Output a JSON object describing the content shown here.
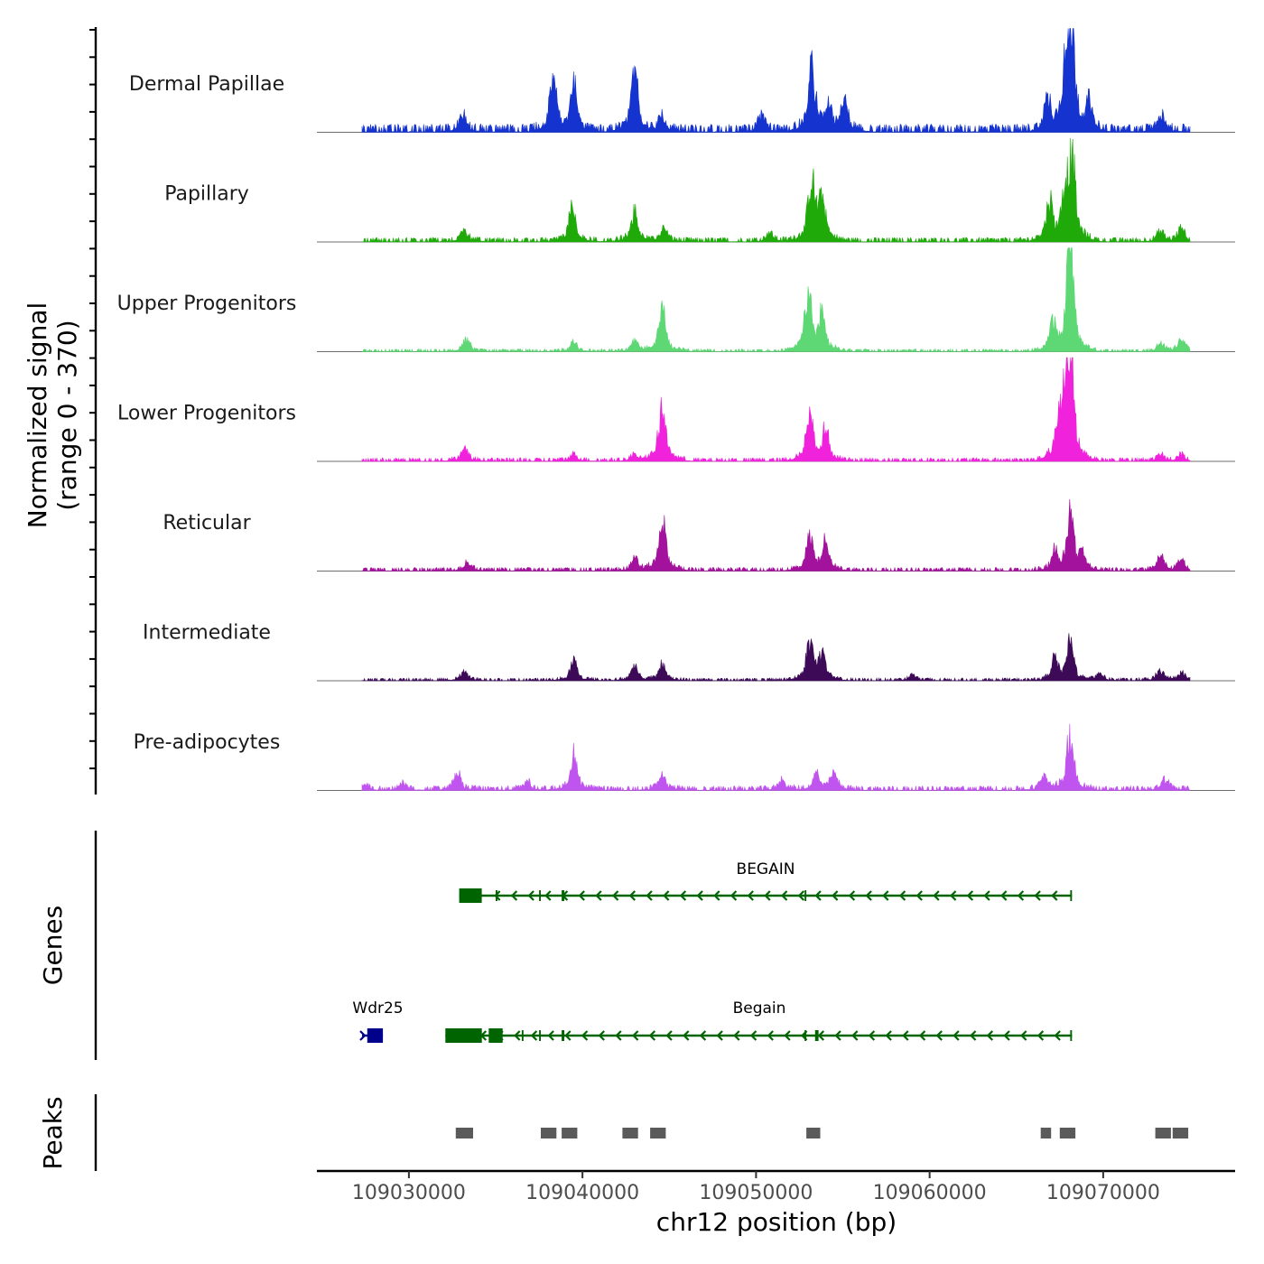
{
  "chart_data": {
    "type": "area",
    "title": "",
    "signal_panel": {
      "ylabel_line1": "Normalized signal",
      "ylabel_line2": "(range 0 - 370)",
      "yrange": [
        0,
        370
      ],
      "tracks": [
        {
          "name": "Dermal Papillae",
          "color": "#1533cf",
          "peaks": [
            [
              109033100,
              55
            ],
            [
              109038300,
              185
            ],
            [
              109039500,
              150
            ],
            [
              109043000,
              190
            ],
            [
              109044600,
              50
            ],
            [
              109050300,
              45
            ],
            [
              109053200,
              230
            ],
            [
              109054200,
              80
            ],
            [
              109055100,
              85
            ],
            [
              109066800,
              100
            ],
            [
              109067800,
              190
            ],
            [
              109068200,
              330
            ],
            [
              109069200,
              80
            ],
            [
              109073400,
              55
            ]
          ],
          "base": 18
        },
        {
          "name": "Papillary",
          "color": "#1faa0a",
          "peaks": [
            [
              109033200,
              35
            ],
            [
              109039400,
              120
            ],
            [
              109043000,
              100
            ],
            [
              109044700,
              40
            ],
            [
              109050800,
              30
            ],
            [
              109053200,
              200
            ],
            [
              109053800,
              140
            ],
            [
              109066900,
              130
            ],
            [
              109067800,
              150
            ],
            [
              109068200,
              260
            ],
            [
              109073300,
              30
            ],
            [
              109074500,
              40
            ]
          ],
          "base": 10
        },
        {
          "name": "Upper Progenitors",
          "color": "#5ed775",
          "peaks": [
            [
              109033300,
              40
            ],
            [
              109039500,
              30
            ],
            [
              109043000,
              35
            ],
            [
              109044600,
              145
            ],
            [
              109053000,
              190
            ],
            [
              109053800,
              130
            ],
            [
              109067100,
              90
            ],
            [
              109068100,
              370
            ],
            [
              109073300,
              25
            ],
            [
              109074500,
              45
            ]
          ],
          "base": 6
        },
        {
          "name": "Lower Progenitors",
          "color": "#f022dc",
          "peaks": [
            [
              109033200,
              40
            ],
            [
              109039500,
              20
            ],
            [
              109043000,
              20
            ],
            [
              109044600,
              190
            ],
            [
              109053100,
              160
            ],
            [
              109054000,
              100
            ],
            [
              109067400,
              90
            ],
            [
              109067800,
              150
            ],
            [
              109068100,
              370
            ],
            [
              109073300,
              20
            ],
            [
              109074500,
              20
            ]
          ],
          "base": 8
        },
        {
          "name": "Reticular",
          "color": "#a2129c",
          "peaks": [
            [
              109033400,
              25
            ],
            [
              109043000,
              40
            ],
            [
              109044600,
              175
            ],
            [
              109053100,
              110
            ],
            [
              109054000,
              100
            ],
            [
              109067200,
              60
            ],
            [
              109068100,
              200
            ],
            [
              109068800,
              50
            ],
            [
              109073300,
              45
            ],
            [
              109074500,
              35
            ]
          ],
          "base": 8
        },
        {
          "name": "Intermediate",
          "color": "#3d0a58",
          "peaks": [
            [
              109033200,
              30
            ],
            [
              109039500,
              65
            ],
            [
              109043000,
              45
            ],
            [
              109044600,
              55
            ],
            [
              109053100,
              130
            ],
            [
              109053800,
              90
            ],
            [
              109059000,
              20
            ],
            [
              109067200,
              70
            ],
            [
              109068100,
              130
            ],
            [
              109069800,
              25
            ],
            [
              109073300,
              35
            ],
            [
              109074500,
              25
            ]
          ],
          "base": 6
        },
        {
          "name": "Pre-adipocytes",
          "color": "#c054ee",
          "peaks": [
            [
              109027500,
              15
            ],
            [
              109029600,
              20
            ],
            [
              109032800,
              55
            ],
            [
              109036800,
              30
            ],
            [
              109039500,
              120
            ],
            [
              109044600,
              50
            ],
            [
              109051500,
              30
            ],
            [
              109053500,
              50
            ],
            [
              109054500,
              55
            ],
            [
              109066600,
              45
            ],
            [
              109068100,
              190
            ],
            [
              109073600,
              35
            ]
          ],
          "base": 10
        }
      ]
    },
    "genes_panel": {
      "ylabel": "Genes",
      "genes": [
        {
          "name": "BEGAIN",
          "color": "#006400",
          "row": 1,
          "strand": "-",
          "start": 109032900,
          "end": 109068200,
          "exons": [
            [
              109032900,
              109034200
            ],
            [
              109035000,
              109035100
            ],
            [
              109037500,
              109037600
            ],
            [
              109038800,
              109038950
            ],
            [
              109052800,
              109052900
            ],
            [
              109068100,
              109068200
            ]
          ]
        },
        {
          "name": "Wdr25",
          "color": "#00008b",
          "row": 2,
          "strand": "+",
          "start": 109027300,
          "end": 109028500,
          "exons": [
            [
              109027600,
              109028500
            ]
          ]
        },
        {
          "name": "Begain",
          "color": "#006400",
          "row": 2,
          "strand": "-",
          "start": 109032100,
          "end": 109068200,
          "exons": [
            [
              109032100,
              109034200
            ],
            [
              109034600,
              109035400
            ],
            [
              109036500,
              109036600
            ],
            [
              109037500,
              109037600
            ],
            [
              109038800,
              109038950
            ],
            [
              109052800,
              109052900
            ],
            [
              109053400,
              109053600
            ],
            [
              109068100,
              109068200
            ]
          ]
        }
      ]
    },
    "peaks_panel": {
      "ylabel": "Peaks",
      "color": "#5a5a5a",
      "regions": [
        [
          109032700,
          109033700
        ],
        [
          109037600,
          109038500
        ],
        [
          109038800,
          109039700
        ],
        [
          109042300,
          109043200
        ],
        [
          109043900,
          109044800
        ],
        [
          109052900,
          109053700
        ],
        [
          109066400,
          109067000
        ],
        [
          109067500,
          109068400
        ],
        [
          109073000,
          109073900
        ],
        [
          109074000,
          109074900
        ]
      ]
    },
    "x_axis": {
      "xlabel": "chr12 position (bp)",
      "xlim": [
        109024700,
        109077600
      ],
      "ticks": [
        109030000,
        109040000,
        109050000,
        109060000,
        109070000
      ],
      "tick_labels": [
        "109030000",
        "109040000",
        "109050000",
        "109060000",
        "109070000"
      ],
      "data_start": 109027300,
      "data_end": 109075000
    }
  }
}
